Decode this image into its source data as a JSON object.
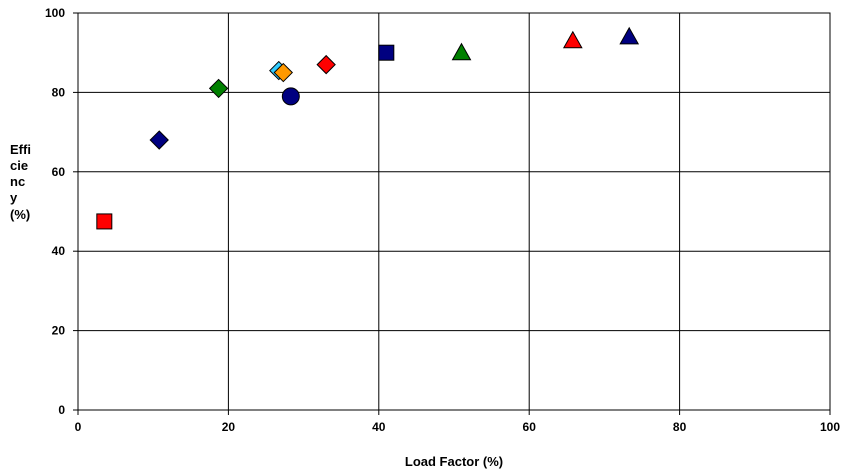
{
  "chart_data": {
    "type": "scatter",
    "xlabel": "Load Factor (%)",
    "ylabel_lines": [
      "Effi",
      "cie",
      "nc",
      "y",
      "(%)"
    ],
    "xlim": [
      0,
      100
    ],
    "ylim": [
      0,
      100
    ],
    "x_ticks": [
      "0",
      "20",
      "40",
      "60",
      "80",
      "100"
    ],
    "y_ticks": [
      "0",
      "20",
      "40",
      "60",
      "80",
      "100"
    ],
    "grid": true,
    "legend": "none",
    "points": [
      {
        "x": 3.5,
        "y": 47.5,
        "marker": "square",
        "color": "#ff0000"
      },
      {
        "x": 10.8,
        "y": 68,
        "marker": "diamond",
        "color": "#000080"
      },
      {
        "x": 18.7,
        "y": 81,
        "marker": "diamond",
        "color": "#008000"
      },
      {
        "x": 26.7,
        "y": 85.5,
        "marker": "diamond",
        "color": "#33ccff"
      },
      {
        "x": 27.3,
        "y": 85,
        "marker": "diamond",
        "color": "#ff9900"
      },
      {
        "x": 28.3,
        "y": 79,
        "marker": "circle",
        "color": "#000080"
      },
      {
        "x": 33,
        "y": 87,
        "marker": "diamond",
        "color": "#ff0000"
      },
      {
        "x": 41,
        "y": 90,
        "marker": "square",
        "color": "#000080"
      },
      {
        "x": 51,
        "y": 90,
        "marker": "triangle",
        "color": "#008000"
      },
      {
        "x": 65.8,
        "y": 93,
        "marker": "triangle",
        "color": "#ff0000"
      },
      {
        "x": 73.3,
        "y": 94,
        "marker": "triangle",
        "color": "#000080"
      }
    ]
  }
}
